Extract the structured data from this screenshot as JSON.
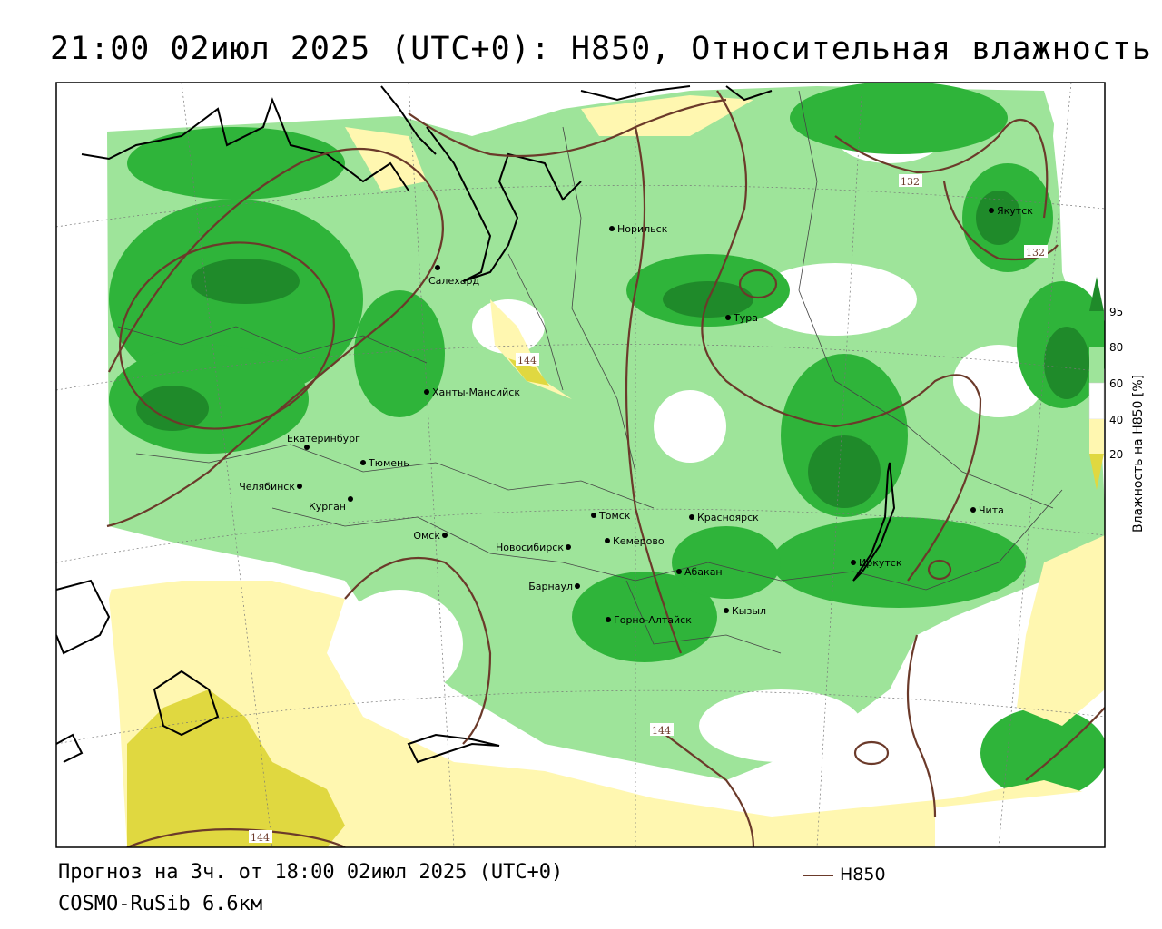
{
  "title": "21:00 02июл 2025 (UTC+0): H850, Относительная влажность",
  "footer": {
    "forecast": "Прогноз на 3ч. от 18:00 02июл 2025 (UTC+0)",
    "model": "COSMO-RuSib 6.6км"
  },
  "legend": {
    "line_label": "H850",
    "line_color": "#6b3a2a"
  },
  "colorbar": {
    "title": "Влажность на H850 [%]",
    "ticks": [
      "95",
      "80",
      "60",
      "40",
      "20"
    ],
    "colors": {
      "gt95": "#1f8a2a",
      "80_95": "#2fb43a",
      "60_80": "#9ee49a",
      "40_60": "#ffffff",
      "20_40": "#fff7b0",
      "lt20": "#e0d840"
    }
  },
  "cities": [
    {
      "name": "Салехард"
    },
    {
      "name": "Норильск"
    },
    {
      "name": "Якутск"
    },
    {
      "name": "Тура"
    },
    {
      "name": "Ханты-Мансийск"
    },
    {
      "name": "Екатеринбург"
    },
    {
      "name": "Тюмень"
    },
    {
      "name": "Челябинск"
    },
    {
      "name": "Курган"
    },
    {
      "name": "Омск"
    },
    {
      "name": "Новосибирск"
    },
    {
      "name": "Томск"
    },
    {
      "name": "Кемерово"
    },
    {
      "name": "Красноярск"
    },
    {
      "name": "Барнаул"
    },
    {
      "name": "Абакан"
    },
    {
      "name": "Горно-Алтайск"
    },
    {
      "name": "Кызыл"
    },
    {
      "name": "Иркутск"
    },
    {
      "name": "Чита"
    }
  ],
  "contour_labels": [
    "132",
    "132",
    "144",
    "144",
    "144"
  ]
}
